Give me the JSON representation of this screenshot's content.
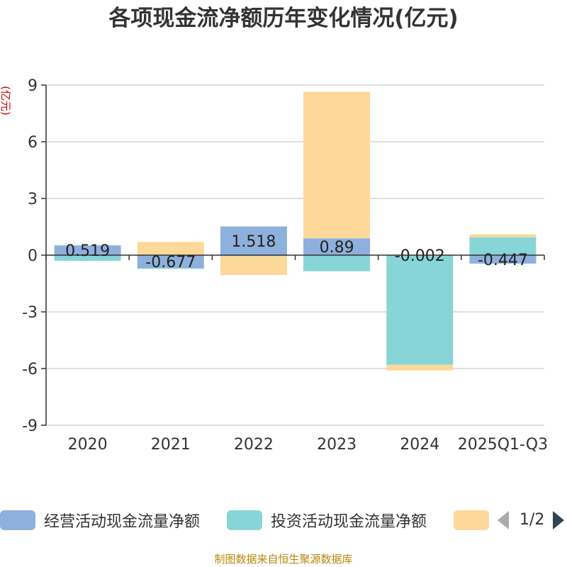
{
  "page_title": "各项现金流净额历年变化情况(亿元)",
  "footer": {
    "source": "制图数据来自恒生聚源数据库"
  },
  "legend": {
    "page_indicator": "1/2",
    "prev_icon": "triangle-left-icon",
    "next_icon": "triangle-right-icon"
  },
  "colors": {
    "operating": "#8eb0dc",
    "investing": "#88d5d7",
    "financing": "#fdd898",
    "axis": "#333333",
    "grid": "#cccccc",
    "y_unit": "#cc0000",
    "nav_inactive": "#aaaaaa",
    "nav_active": "#2f4554"
  },
  "chart_data": {
    "type": "bar",
    "stacked": true,
    "title": "各项现金流净额历年变化情况(亿元)",
    "ylabel": "(亿元)",
    "xlabel": "",
    "ylim": [
      -9,
      9
    ],
    "yticks": [
      9,
      6,
      3,
      0,
      -3,
      -6,
      -9
    ],
    "categories": [
      "2020",
      "2021",
      "2022",
      "2023",
      "2024",
      "2025Q1-Q3"
    ],
    "grid": true,
    "legend_position": "bottom",
    "series": [
      {
        "name": "经营活动现金流量净额",
        "color_key": "operating",
        "values": [
          0.519,
          -0.677,
          1.518,
          0.89,
          -0.002,
          -0.447
        ],
        "data_labels": [
          "0.519",
          "-0.677",
          "1.518",
          "0.89",
          "-0.002",
          "-0.447"
        ]
      },
      {
        "name": "投资活动现金流量净额",
        "color_key": "investing",
        "values": [
          -0.3,
          -0.05,
          -0.05,
          -0.85,
          -5.8,
          0.95
        ]
      },
      {
        "name": "",
        "color_key": "financing",
        "values": [
          0.0,
          0.7,
          -1.0,
          7.75,
          -0.3,
          0.15
        ]
      }
    ]
  }
}
